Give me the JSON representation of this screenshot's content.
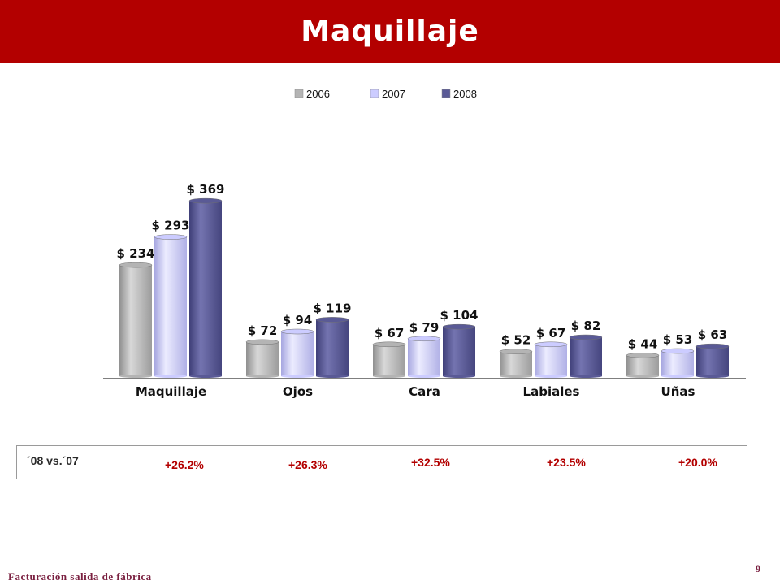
{
  "header": {
    "title": "Maquillaje"
  },
  "chart_data": {
    "type": "bar",
    "categories": [
      "Maquillaje",
      "Ojos",
      "Cara",
      "Labiales",
      "Uñas"
    ],
    "series": [
      {
        "name": "2006",
        "values": [
          234,
          72,
          67,
          52,
          44
        ],
        "labels": [
          "$ 234",
          "$ 72",
          "$ 67",
          "$ 52",
          "$ 44"
        ],
        "color": "#b4b4b4"
      },
      {
        "name": "2007",
        "values": [
          293,
          94,
          79,
          67,
          53
        ],
        "labels": [
          "$ 293",
          "$ 94",
          "$ 79",
          "$ 67",
          "$ 53"
        ],
        "color": "#ccccff"
      },
      {
        "name": "2008",
        "values": [
          369,
          119,
          104,
          82,
          63
        ],
        "labels": [
          "$ 369",
          "$ 119",
          "$ 104",
          "$ 82",
          "$ 63"
        ],
        "color": "#5a5a96"
      }
    ],
    "legend_position": "top",
    "grid": false,
    "ylim": [
      0,
      400
    ]
  },
  "growth": {
    "label": "´08 vs.´07",
    "values": [
      "+26.2%",
      "+26.3%",
      "+32.5%",
      "+23.5%",
      "+20.0%"
    ],
    "color": "#b30000"
  },
  "footer": {
    "note": "Facturación salida de fábrica",
    "page": "9"
  }
}
